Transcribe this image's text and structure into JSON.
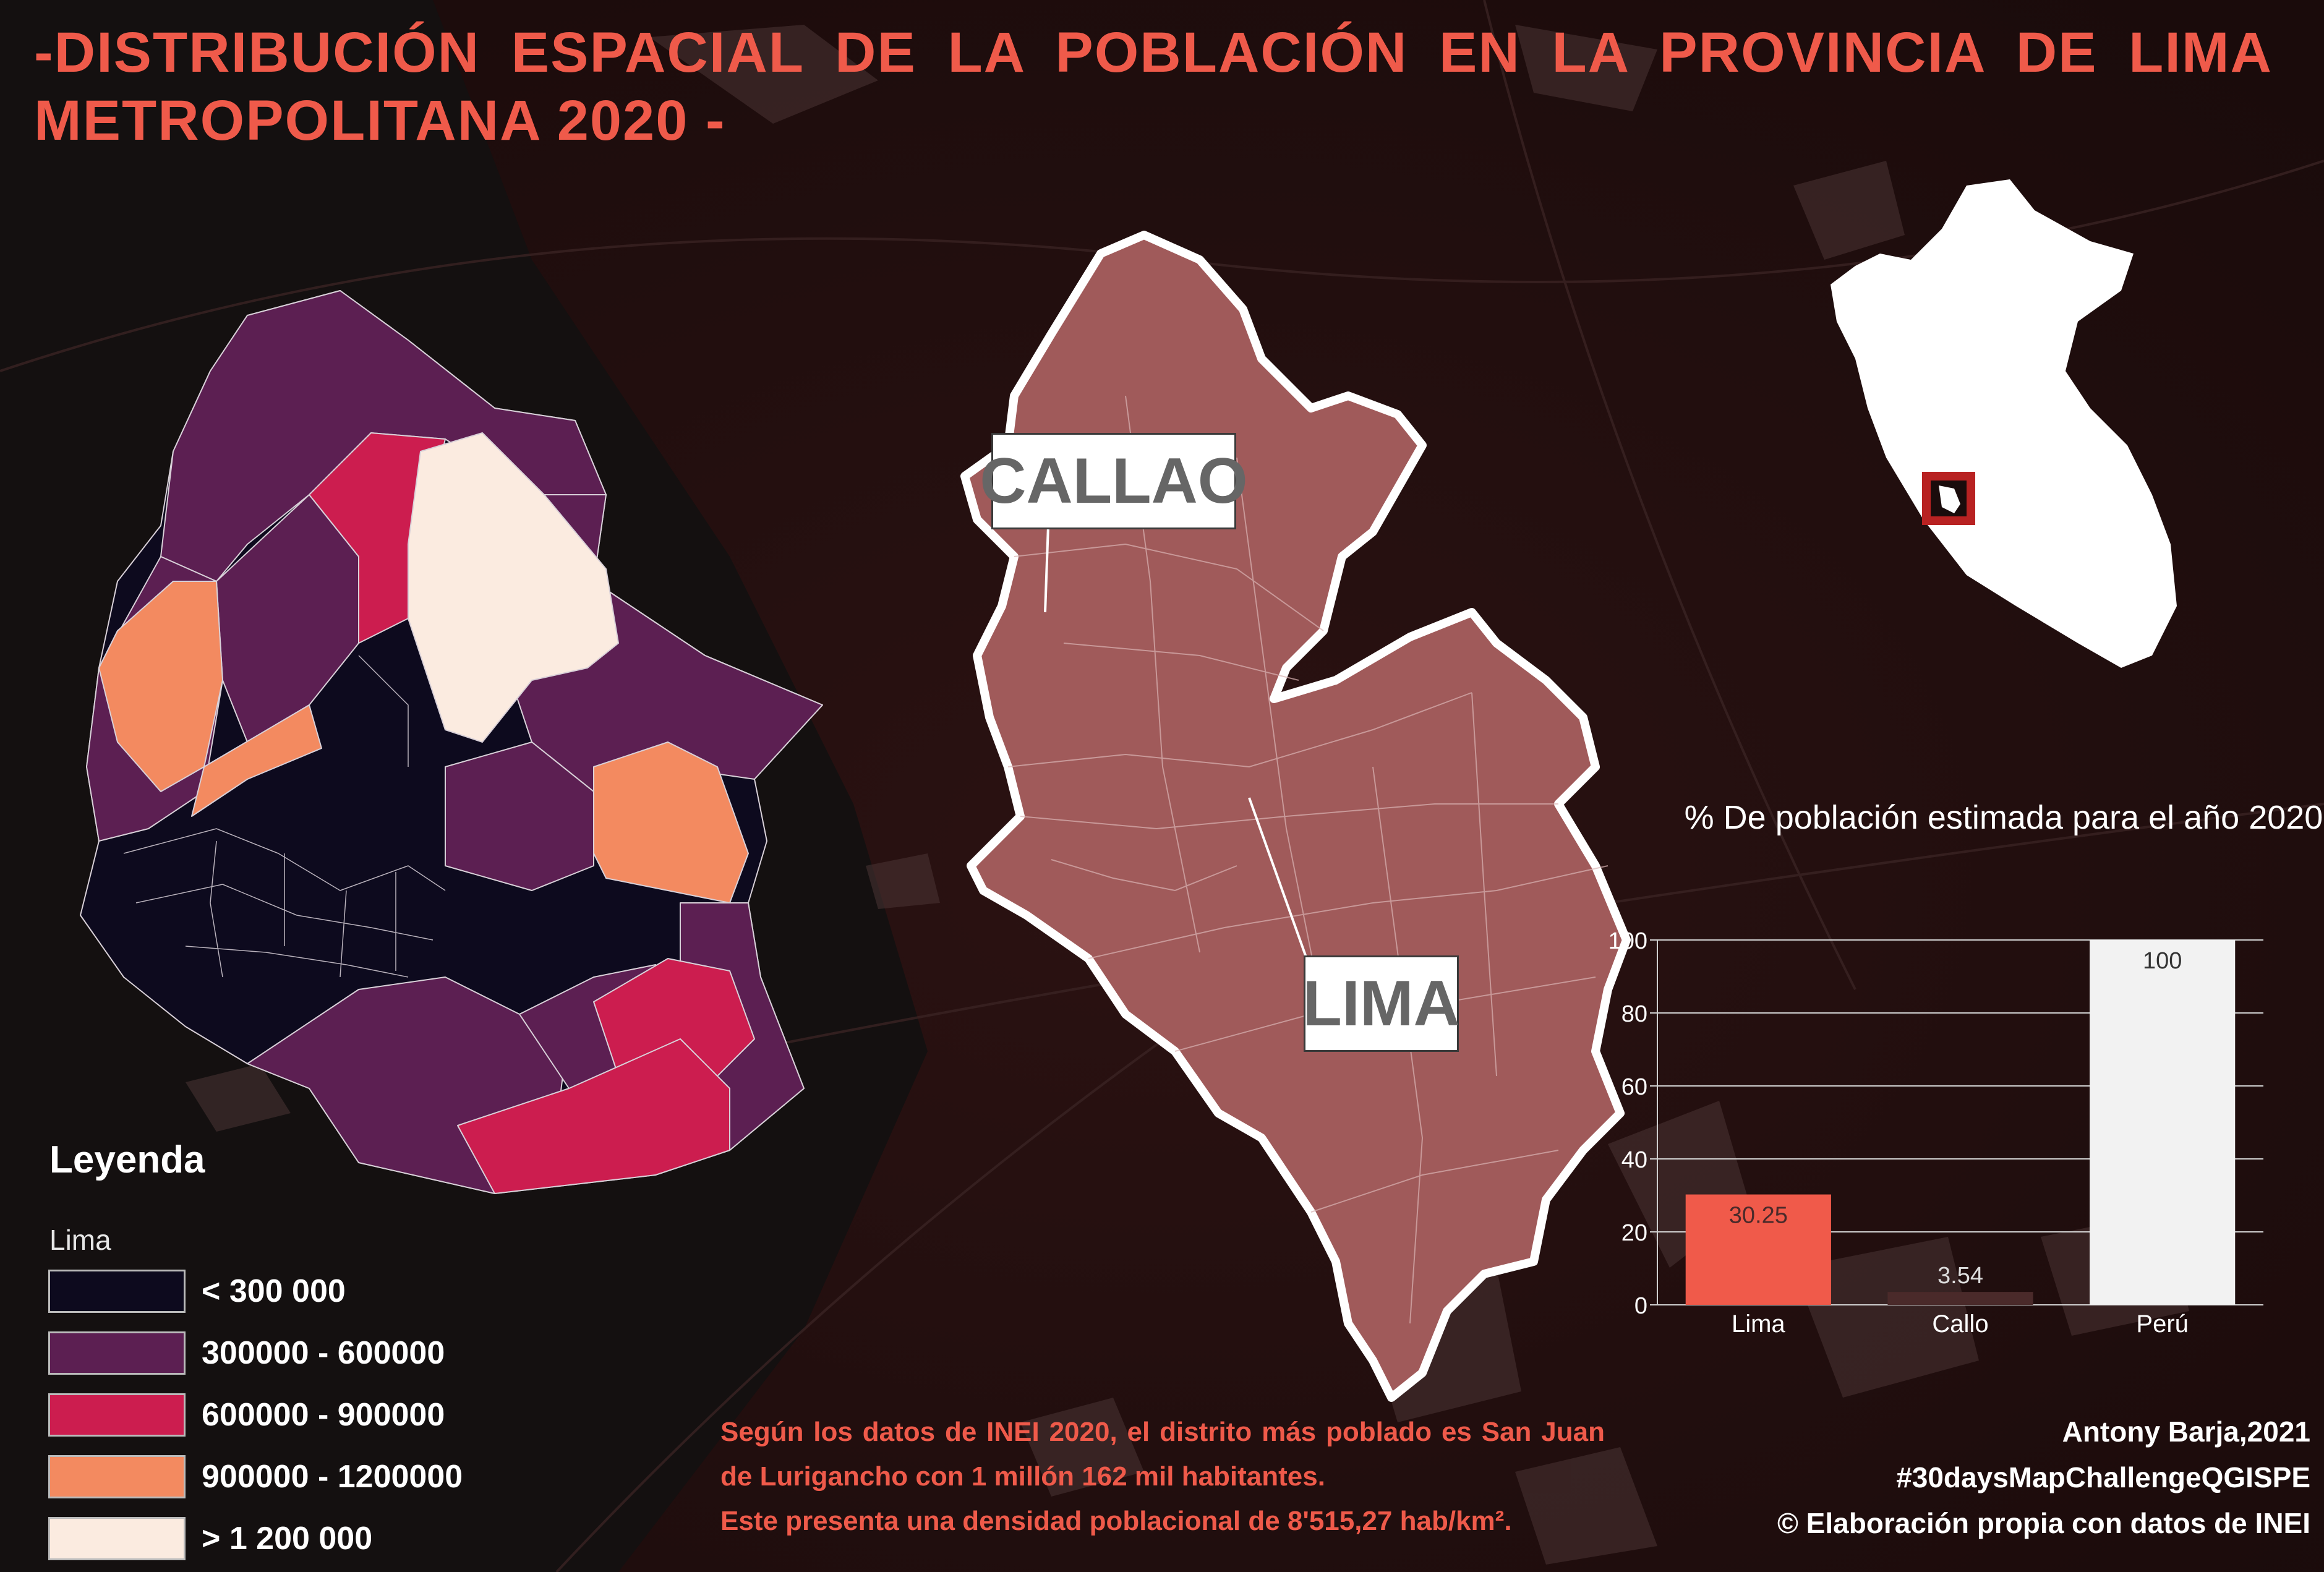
{
  "title": "-DISTRIBUCIÓN ESPACIAL DE LA POBLACIÓN EN LA PROVINCIA DE LIMA METROPOLITANA 2020 -",
  "map_labels": {
    "callao": "CALLAO",
    "lima": "LIMA"
  },
  "legend": {
    "title": "Leyenda",
    "layer": "Lima",
    "items": [
      {
        "label": "< 300 000",
        "color": "#0d0a1e"
      },
      {
        "label": "300000 - 600000",
        "color": "#5c1f52"
      },
      {
        "label": "600000 - 900000",
        "color": "#cc1d4f"
      },
      {
        "label": "900000 - 1200000",
        "color": "#f38a60"
      },
      {
        "label": "> 1 200 000",
        "color": "#fbebe0"
      }
    ]
  },
  "chart_data": {
    "type": "bar",
    "title": "% De población estimada para el año 2020",
    "categories": [
      "Lima",
      "Callo",
      "Perú"
    ],
    "values": [
      30.25,
      3.54,
      100
    ],
    "value_labels": [
      "30.25",
      "3.54",
      "100"
    ],
    "colors": [
      "#f05a4a",
      "#4a2a2a",
      "#f2f2f2"
    ],
    "ylim": [
      0,
      100
    ],
    "yticks": [
      0,
      20,
      40,
      60,
      80,
      100
    ],
    "grid": true
  },
  "note": [
    "Según los datos de INEI 2020, el distrito más poblado es San Juan de Lurigancho con 1 millón 162 mil habitantes.",
    "Este presenta una densidad poblacional de 8'515,27 hab/km²."
  ],
  "credits": [
    "Antony Barja,2021",
    "#30daysMapChallengeQGISPE",
    "© Elaboración propia con datos de INEI"
  ],
  "colors": {
    "accent": "#ef5a4a",
    "background": "#1a0c0c",
    "lima_fill": "#a05a5a"
  }
}
